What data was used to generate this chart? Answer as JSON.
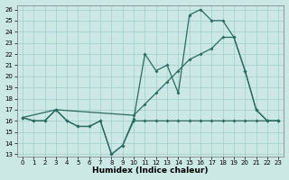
{
  "xlabel": "Humidex (Indice chaleur)",
  "background_color": "#cce8e5",
  "grid_color": "#a0cccc",
  "line_color": "#2a6b60",
  "xlim": [
    -0.5,
    23.5
  ],
  "ylim": [
    12.8,
    26.4
  ],
  "yticks": [
    13,
    14,
    15,
    16,
    17,
    18,
    19,
    20,
    21,
    22,
    23,
    24,
    25,
    26
  ],
  "xticks": [
    0,
    1,
    2,
    3,
    4,
    5,
    6,
    7,
    8,
    9,
    10,
    11,
    12,
    13,
    14,
    15,
    16,
    17,
    18,
    19,
    20,
    21,
    22,
    23
  ],
  "s1_x": [
    0,
    1,
    2,
    3,
    4,
    5,
    6,
    7,
    8,
    9,
    10,
    11,
    12,
    13,
    14,
    15,
    16,
    17,
    18,
    19,
    20,
    21,
    22,
    23
  ],
  "s1_y": [
    16.3,
    16,
    16,
    17,
    16,
    15.5,
    15.5,
    16,
    13,
    13.8,
    16,
    16,
    16,
    16,
    16,
    16,
    16,
    16,
    16,
    16,
    16,
    16,
    16,
    16
  ],
  "s2_x": [
    0,
    1,
    2,
    3,
    4,
    5,
    6,
    7,
    8,
    9,
    10,
    11,
    12,
    13,
    14,
    15,
    16,
    17,
    18,
    19,
    20,
    21,
    22,
    23
  ],
  "s2_y": [
    16.3,
    16,
    16,
    17,
    16,
    15.5,
    15.5,
    16,
    13,
    13.8,
    16.2,
    22,
    20.5,
    21,
    18.5,
    25.5,
    26,
    25,
    25,
    23.5,
    20.5,
    17,
    16,
    16
  ],
  "s3_x": [
    0,
    3,
    10,
    11,
    12,
    13,
    14,
    15,
    16,
    17,
    18,
    19,
    20,
    21,
    22,
    23
  ],
  "s3_y": [
    16.3,
    17,
    16.5,
    17.5,
    18.5,
    19.5,
    20.5,
    21.5,
    22.0,
    22.5,
    23.5,
    23.5,
    20.5,
    17,
    16,
    16
  ]
}
